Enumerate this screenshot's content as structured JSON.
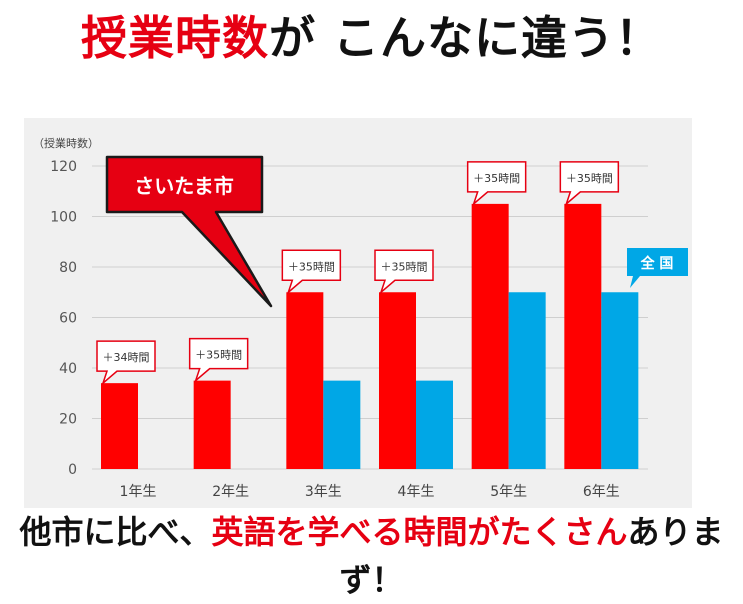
{
  "headline": {
    "part1": "授業時数",
    "part2": "が こんなに違う！"
  },
  "footer": {
    "part1": "他市に比べ、",
    "part2": "英語を学べる時間がたくさん",
    "part3": "ありまず！"
  },
  "colors": {
    "saitama": "#ff0000",
    "national": "#00a7e6",
    "accent_red": "#e60012",
    "panel_bg": "#f0f0f0"
  },
  "chart_data": {
    "type": "bar",
    "ylabel": "（授業時数）",
    "ylim": [
      0,
      120
    ],
    "yticks": [
      0,
      20,
      40,
      60,
      80,
      100,
      120
    ],
    "categories": [
      "1年生",
      "2年生",
      "3年生",
      "4年生",
      "5年生",
      "6年生"
    ],
    "series": [
      {
        "name": "さいたま市",
        "values": [
          34,
          35,
          70,
          70,
          105,
          105
        ]
      },
      {
        "name": "全 国",
        "values": [
          0,
          0,
          35,
          35,
          70,
          70
        ]
      }
    ],
    "difference_labels": [
      "＋34時間",
      "＋35時間",
      "＋35時間",
      "＋35時間",
      "＋35時間",
      "＋35時間"
    ],
    "grid": true
  }
}
